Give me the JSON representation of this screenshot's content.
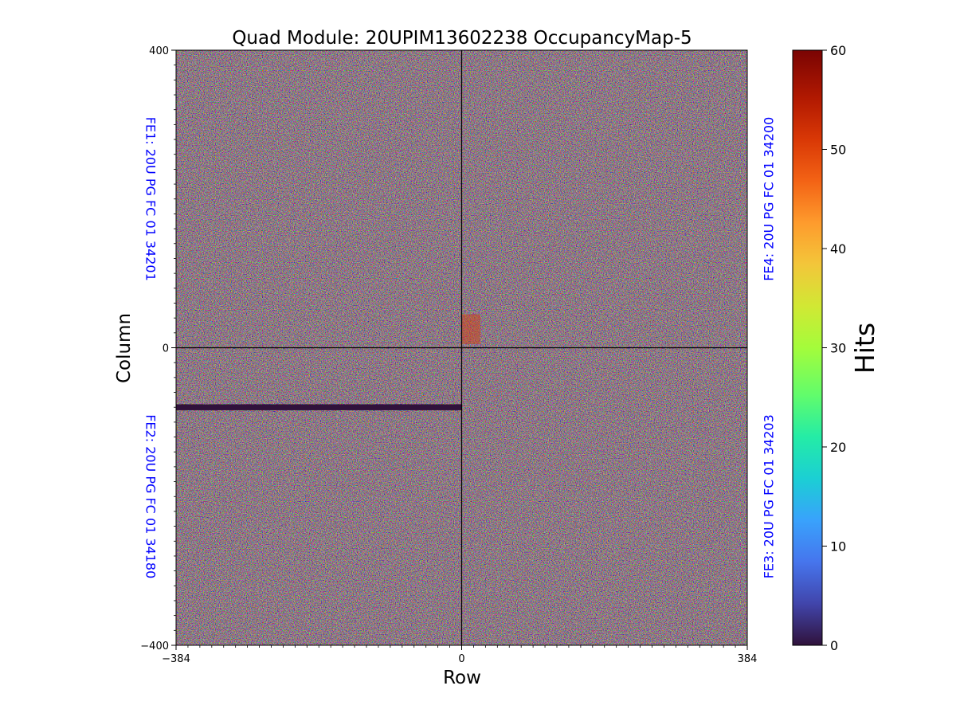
{
  "chart_data": {
    "type": "heatmap",
    "title": "Quad Module: 20UPIM13602238 OccupancyMap-5",
    "xlabel": "Row",
    "ylabel": "Column",
    "xlim": [
      -384,
      384
    ],
    "ylim": [
      -400,
      400
    ],
    "x_ticks": [
      {
        "value": -384,
        "label": "−384"
      },
      {
        "value": 0,
        "label": "0"
      },
      {
        "value": 384,
        "label": "384"
      }
    ],
    "y_ticks": [
      {
        "value": 400,
        "label": "400"
      },
      {
        "value": 0,
        "label": "0"
      },
      {
        "value": -400,
        "label": "−400"
      }
    ],
    "colorbar": {
      "label": "Hits",
      "range": [
        0,
        60
      ],
      "colormap": "turbo",
      "ticks": [
        0,
        10,
        20,
        30,
        40,
        50,
        60
      ]
    },
    "annotations": [
      {
        "label": "FE1: 20U PG FC 01 34201",
        "side": "left",
        "quadrant": "top-left",
        "color": "#0000ff"
      },
      {
        "label": "FE2: 20U PG FC 01 34180",
        "side": "left",
        "quadrant": "bottom-left",
        "color": "#0000ff"
      },
      {
        "label": "FE3: 20U PG FC 01 34203",
        "side": "right",
        "quadrant": "bottom-right",
        "color": "#0000ff"
      },
      {
        "label": "FE4: 20U PG FC 01 34200",
        "side": "right",
        "quadrant": "top-right",
        "color": "#0000ff"
      }
    ],
    "quadrant_dividers": {
      "x": 0,
      "y": 0
    },
    "features": [
      {
        "description": "dead band (0 hits)",
        "x_range": [
          -384,
          0
        ],
        "y_range": [
          -84,
          -76
        ],
        "value": 0
      },
      {
        "description": "hot spot",
        "x_range": [
          0,
          25
        ],
        "y_range": [
          5,
          45
        ],
        "value": 52
      }
    ],
    "typical_hits_range": [
      0,
      60
    ]
  }
}
